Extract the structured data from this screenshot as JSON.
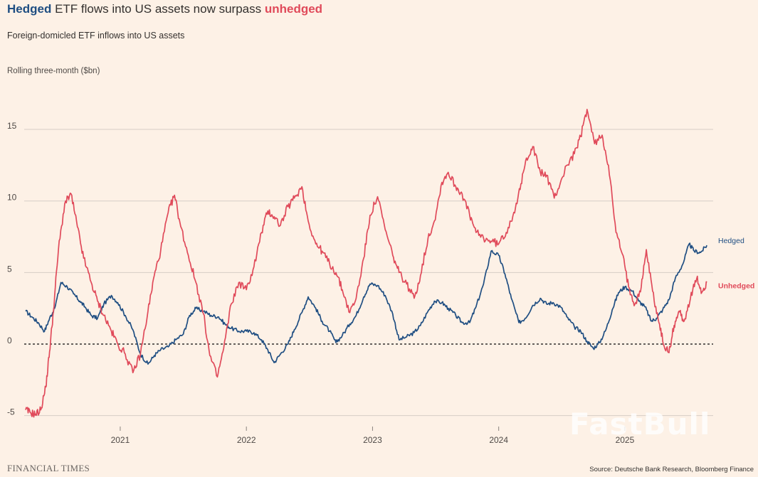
{
  "header": {
    "title_hedged": "Hedged",
    "title_middle": " ETF flows into US assets now surpass ",
    "title_unhedged": "unhedged",
    "subtitle": "Foreign-domicled ETF inflows into US assets",
    "unit_label": "Rolling three-month ($bn)"
  },
  "footer": {
    "brand": "FINANCIAL TIMES",
    "source": "Source: Deutsche Bank Research, Bloomberg Finance",
    "watermark": "FastBull"
  },
  "colors": {
    "hedged": "#1f4e82",
    "unhedged": "#e04a5a",
    "grid": "#d6cdc5",
    "zero_line": "#33302e",
    "background": "#fdf1e6"
  },
  "chart_data": {
    "type": "line",
    "title": "Hedged ETF flows into US assets now surpass unhedged",
    "subtitle": "Foreign-domicled ETF inflows into US assets",
    "ylabel": "Rolling three-month ($bn)",
    "xlabel": "",
    "ylim": [
      -5.5,
      16.8
    ],
    "xlim": [
      2020.25,
      2025.7
    ],
    "yticks": [
      -5,
      0,
      5,
      10,
      15
    ],
    "ytick_labels": [
      "-5",
      "0",
      "5",
      "10",
      "15"
    ],
    "xticks": [
      2021,
      2022,
      2023,
      2024,
      2025
    ],
    "xtick_labels": [
      "2021",
      "2022",
      "2023",
      "2024",
      "2025"
    ],
    "grid": true,
    "zero_line": "dashed",
    "series": [
      {
        "name": "Hedged",
        "label": "Hedged",
        "points": [
          [
            2020.25,
            2.3
          ],
          [
            2020.3,
            1.9
          ],
          [
            2020.35,
            1.5
          ],
          [
            2020.4,
            0.9
          ],
          [
            2020.44,
            1.8
          ],
          [
            2020.48,
            2.5
          ],
          [
            2020.53,
            4.3
          ],
          [
            2020.58,
            4.0
          ],
          [
            2020.63,
            3.5
          ],
          [
            2020.68,
            3.0
          ],
          [
            2020.72,
            2.6
          ],
          [
            2020.77,
            2.0
          ],
          [
            2020.82,
            1.8
          ],
          [
            2020.87,
            2.8
          ],
          [
            2020.93,
            3.4
          ],
          [
            2020.98,
            2.9
          ],
          [
            2021.04,
            2.0
          ],
          [
            2021.1,
            1.0
          ],
          [
            2021.16,
            -0.7
          ],
          [
            2021.22,
            -1.4
          ],
          [
            2021.27,
            -0.8
          ],
          [
            2021.32,
            -0.4
          ],
          [
            2021.38,
            -0.2
          ],
          [
            2021.44,
            0.3
          ],
          [
            2021.5,
            0.7
          ],
          [
            2021.55,
            2.0
          ],
          [
            2021.6,
            2.5
          ],
          [
            2021.66,
            2.3
          ],
          [
            2021.72,
            2.0
          ],
          [
            2021.78,
            1.9
          ],
          [
            2021.83,
            1.4
          ],
          [
            2021.88,
            1.1
          ],
          [
            2021.94,
            0.9
          ],
          [
            2022.0,
            0.9
          ],
          [
            2022.06,
            0.8
          ],
          [
            2022.12,
            0.3
          ],
          [
            2022.17,
            -0.4
          ],
          [
            2022.22,
            -1.3
          ],
          [
            2022.27,
            -0.7
          ],
          [
            2022.33,
            0.0
          ],
          [
            2022.38,
            1.0
          ],
          [
            2022.44,
            2.2
          ],
          [
            2022.49,
            3.3
          ],
          [
            2022.55,
            2.5
          ],
          [
            2022.6,
            1.6
          ],
          [
            2022.66,
            0.9
          ],
          [
            2022.71,
            0.1
          ],
          [
            2022.76,
            0.6
          ],
          [
            2022.82,
            1.4
          ],
          [
            2022.87,
            2.0
          ],
          [
            2022.93,
            3.3
          ],
          [
            2022.98,
            4.2
          ],
          [
            2023.04,
            4.1
          ],
          [
            2023.1,
            3.4
          ],
          [
            2023.16,
            2.1
          ],
          [
            2023.21,
            0.3
          ],
          [
            2023.27,
            0.5
          ],
          [
            2023.33,
            0.8
          ],
          [
            2023.38,
            1.3
          ],
          [
            2023.44,
            2.3
          ],
          [
            2023.49,
            3.0
          ],
          [
            2023.55,
            2.9
          ],
          [
            2023.6,
            2.5
          ],
          [
            2023.66,
            2.0
          ],
          [
            2023.71,
            1.5
          ],
          [
            2023.77,
            1.5
          ],
          [
            2023.82,
            2.6
          ],
          [
            2023.88,
            4.2
          ],
          [
            2023.94,
            6.5
          ],
          [
            2024.0,
            6.2
          ],
          [
            2024.05,
            4.9
          ],
          [
            2024.1,
            3.2
          ],
          [
            2024.16,
            1.5
          ],
          [
            2024.21,
            1.8
          ],
          [
            2024.27,
            2.7
          ],
          [
            2024.33,
            3.2
          ],
          [
            2024.38,
            2.8
          ],
          [
            2024.43,
            2.9
          ],
          [
            2024.49,
            2.6
          ],
          [
            2024.54,
            1.9
          ],
          [
            2024.6,
            1.2
          ],
          [
            2024.65,
            0.9
          ],
          [
            2024.7,
            0.2
          ],
          [
            2024.75,
            -0.3
          ],
          [
            2024.8,
            0.1
          ],
          [
            2024.85,
            1.0
          ],
          [
            2024.9,
            2.4
          ],
          [
            2024.95,
            3.6
          ],
          [
            2025.0,
            4.0
          ],
          [
            2025.06,
            3.7
          ],
          [
            2025.11,
            3.0
          ],
          [
            2025.16,
            2.6
          ],
          [
            2025.21,
            1.6
          ],
          [
            2025.25,
            1.8
          ],
          [
            2025.3,
            2.4
          ],
          [
            2025.35,
            3.1
          ],
          [
            2025.4,
            4.6
          ],
          [
            2025.46,
            5.6
          ],
          [
            2025.51,
            7.0
          ],
          [
            2025.55,
            6.5
          ],
          [
            2025.6,
            6.4
          ],
          [
            2025.65,
            6.9
          ]
        ]
      },
      {
        "name": "Unhedged",
        "label": "Unhedged",
        "points": [
          [
            2020.25,
            -4.6
          ],
          [
            2020.29,
            -4.8
          ],
          [
            2020.33,
            -4.9
          ],
          [
            2020.37,
            -4.6
          ],
          [
            2020.41,
            -3.0
          ],
          [
            2020.44,
            -0.5
          ],
          [
            2020.47,
            2.3
          ],
          [
            2020.51,
            6.6
          ],
          [
            2020.56,
            9.8
          ],
          [
            2020.61,
            10.5
          ],
          [
            2020.66,
            8.2
          ],
          [
            2020.71,
            6.0
          ],
          [
            2020.77,
            4.3
          ],
          [
            2020.82,
            3.0
          ],
          [
            2020.87,
            2.0
          ],
          [
            2020.93,
            0.9
          ],
          [
            2020.98,
            0.0
          ],
          [
            2021.04,
            -0.7
          ],
          [
            2021.1,
            -2.0
          ],
          [
            2021.16,
            -0.7
          ],
          [
            2021.22,
            2.3
          ],
          [
            2021.27,
            4.8
          ],
          [
            2021.32,
            6.5
          ],
          [
            2021.38,
            9.2
          ],
          [
            2021.43,
            10.4
          ],
          [
            2021.48,
            8.2
          ],
          [
            2021.54,
            6.2
          ],
          [
            2021.6,
            4.3
          ],
          [
            2021.66,
            2.1
          ],
          [
            2021.71,
            -0.8
          ],
          [
            2021.77,
            -2.3
          ],
          [
            2021.82,
            -0.3
          ],
          [
            2021.88,
            2.8
          ],
          [
            2021.94,
            4.3
          ],
          [
            2022.0,
            3.8
          ],
          [
            2022.06,
            5.4
          ],
          [
            2022.12,
            7.8
          ],
          [
            2022.17,
            9.3
          ],
          [
            2022.22,
            8.9
          ],
          [
            2022.27,
            8.3
          ],
          [
            2022.33,
            9.6
          ],
          [
            2022.38,
            10.2
          ],
          [
            2022.44,
            11.0
          ],
          [
            2022.49,
            8.6
          ],
          [
            2022.55,
            7.0
          ],
          [
            2022.6,
            6.5
          ],
          [
            2022.66,
            5.6
          ],
          [
            2022.71,
            5.0
          ],
          [
            2022.76,
            3.8
          ],
          [
            2022.82,
            2.2
          ],
          [
            2022.87,
            3.2
          ],
          [
            2022.93,
            6.0
          ],
          [
            2022.98,
            9.0
          ],
          [
            2023.04,
            10.3
          ],
          [
            2023.1,
            8.0
          ],
          [
            2023.16,
            6.2
          ],
          [
            2023.21,
            5.0
          ],
          [
            2023.27,
            4.2
          ],
          [
            2023.33,
            3.2
          ],
          [
            2023.38,
            4.8
          ],
          [
            2023.44,
            7.4
          ],
          [
            2023.49,
            8.6
          ],
          [
            2023.55,
            11.3
          ],
          [
            2023.6,
            12.0
          ],
          [
            2023.66,
            11.0
          ],
          [
            2023.71,
            10.5
          ],
          [
            2023.77,
            9.0
          ],
          [
            2023.82,
            7.8
          ],
          [
            2023.88,
            7.4
          ],
          [
            2023.94,
            7.2
          ],
          [
            2024.0,
            7.0
          ],
          [
            2024.06,
            7.8
          ],
          [
            2024.12,
            9.2
          ],
          [
            2024.17,
            10.8
          ],
          [
            2024.22,
            13.0
          ],
          [
            2024.27,
            13.8
          ],
          [
            2024.33,
            12.0
          ],
          [
            2024.38,
            11.8
          ],
          [
            2024.44,
            10.2
          ],
          [
            2024.49,
            11.3
          ],
          [
            2024.54,
            12.5
          ],
          [
            2024.6,
            13.3
          ],
          [
            2024.65,
            14.5
          ],
          [
            2024.7,
            16.4
          ],
          [
            2024.76,
            14.0
          ],
          [
            2024.82,
            14.6
          ],
          [
            2024.87,
            12.5
          ],
          [
            2024.93,
            7.8
          ],
          [
            2024.98,
            6.3
          ],
          [
            2025.03,
            4.0
          ],
          [
            2025.08,
            2.8
          ],
          [
            2025.13,
            4.0
          ],
          [
            2025.17,
            6.6
          ],
          [
            2025.22,
            3.7
          ],
          [
            2025.27,
            1.5
          ],
          [
            2025.31,
            -0.1
          ],
          [
            2025.35,
            -0.6
          ],
          [
            2025.39,
            1.3
          ],
          [
            2025.43,
            2.3
          ],
          [
            2025.47,
            1.6
          ],
          [
            2025.52,
            3.2
          ],
          [
            2025.57,
            4.6
          ],
          [
            2025.61,
            3.6
          ],
          [
            2025.65,
            4.3
          ]
        ]
      }
    ]
  }
}
